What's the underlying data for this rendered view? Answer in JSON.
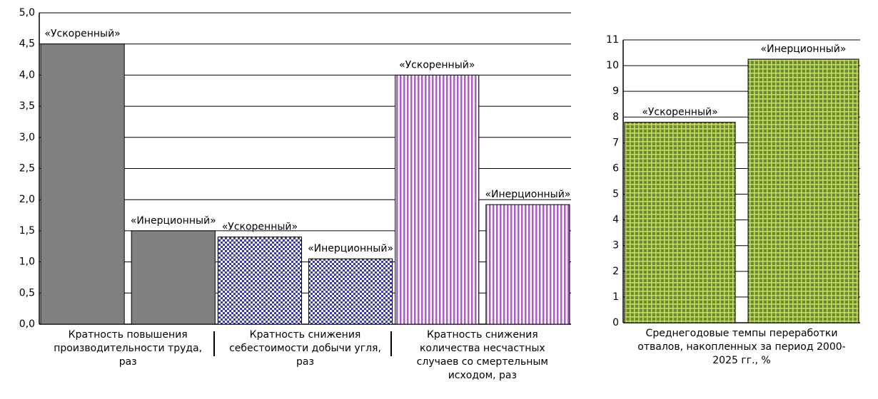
{
  "chart_data": [
    {
      "type": "bar",
      "categories": [
        "Кратность повышения производительности труда, раз",
        "Кратность снижения себестоимости добычи угля, раз",
        "Кратность снижения количества несчастных случаев со смертельным исходом, раз"
      ],
      "category_colors": [
        "#808080",
        "#3b3ba8",
        "#b05cc8"
      ],
      "series": [
        {
          "name": "«Ускоренный»",
          "values": [
            4.5,
            1.4,
            4.0
          ]
        },
        {
          "name": "«Инерционный»",
          "values": [
            1.5,
            1.05,
            1.92
          ]
        }
      ],
      "ylim": [
        0,
        5
      ],
      "yticks": [
        {
          "value": 0,
          "label": "0,0"
        },
        {
          "value": 0.5,
          "label": "0,5"
        },
        {
          "value": 1,
          "label": "1,0"
        },
        {
          "value": 1.5,
          "label": "1,5"
        },
        {
          "value": 2,
          "label": "2,0"
        },
        {
          "value": 2.5,
          "label": "2,5"
        },
        {
          "value": 3,
          "label": "3,0"
        },
        {
          "value": 3.5,
          "label": "3,5"
        },
        {
          "value": 4,
          "label": "4,0"
        },
        {
          "value": 4.5,
          "label": "4,5"
        },
        {
          "value": 5,
          "label": "5,0"
        }
      ],
      "grid": true
    },
    {
      "type": "bar",
      "categories": [
        "Среднегодовые темпы переработки отвалов, накопленных за период 2000-2025 гг., %"
      ],
      "category_colors": [
        "#6a8a3a"
      ],
      "series": [
        {
          "name": "«Ускоренный»",
          "values": [
            7.8
          ]
        },
        {
          "name": "«Инерционный»",
          "values": [
            10.25
          ]
        }
      ],
      "ylim": [
        0,
        11
      ],
      "yticks": [
        0,
        1,
        2,
        3,
        4,
        5,
        6,
        7,
        8,
        9,
        10,
        11
      ],
      "grid": true
    }
  ]
}
